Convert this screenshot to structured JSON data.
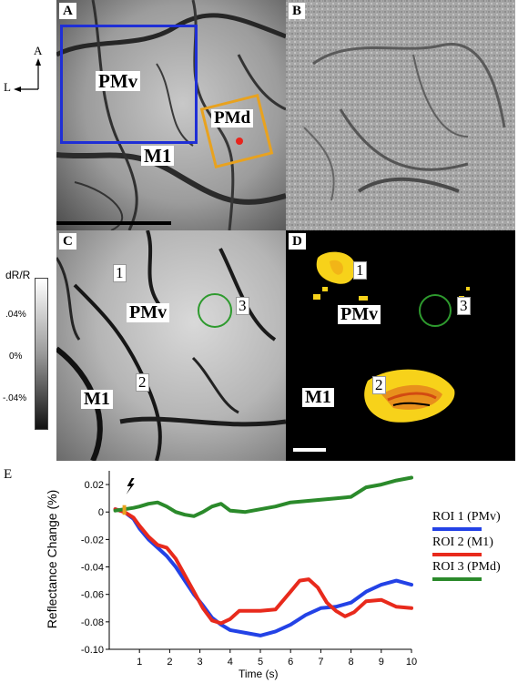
{
  "figure": {
    "orientation": {
      "anterior": "A",
      "lateral": "L"
    },
    "panels": {
      "a": {
        "label": "A",
        "regions": {
          "pmv": "PMv",
          "pmd": "PMd",
          "m1": "M1"
        }
      },
      "b": {
        "label": "B"
      },
      "c": {
        "label": "C",
        "regions": {
          "pmv": "PMv",
          "m1": "M1"
        },
        "rois": [
          "1",
          "2",
          "3"
        ]
      },
      "d": {
        "label": "D",
        "regions": {
          "pmv": "PMv",
          "m1": "M1"
        },
        "rois": [
          "1",
          "2",
          "3"
        ]
      },
      "e": {
        "label": "E"
      }
    },
    "colorbar": {
      "title": "dR/R",
      "ticks": [
        ".04%",
        "0%",
        "-.04%"
      ]
    },
    "colors": {
      "box_pmv": "#1f2fd6",
      "box_pmd": "#e8a21f",
      "roi_circle": "#2e9a2e",
      "stim_marker": "#e8a21f",
      "activation": "#f7d21a"
    }
  },
  "chart_data": {
    "type": "line",
    "title": "",
    "xlabel": "Time (s)",
    "ylabel": "Reflectance Change (%)",
    "xlim": [
      0,
      10
    ],
    "ylim": [
      -0.1,
      0.03
    ],
    "xticks": [
      "1",
      "2",
      "3",
      "4",
      "5",
      "6",
      "7",
      "8",
      "9",
      "10"
    ],
    "yticks": [
      "0.02",
      "0",
      "-0.02",
      "-0.04",
      "-0.06",
      "-0.08",
      "-0.10"
    ],
    "stimulus_time": 0.5,
    "grid": false,
    "legend_placement": "right",
    "series": [
      {
        "name": "ROI 1 (PMv)",
        "color": "#2342e6",
        "x": [
          0.2,
          0.5,
          0.8,
          1.0,
          1.3,
          1.6,
          1.9,
          2.2,
          2.5,
          2.8,
          3.1,
          3.4,
          3.7,
          4.0,
          4.5,
          5.0,
          5.5,
          6.0,
          6.5,
          7.0,
          7.5,
          8.0,
          8.5,
          9.0,
          9.5,
          10.0
        ],
        "values": [
          0.002,
          0.0,
          -0.005,
          -0.012,
          -0.02,
          -0.026,
          -0.032,
          -0.04,
          -0.05,
          -0.06,
          -0.068,
          -0.077,
          -0.082,
          -0.086,
          -0.088,
          -0.09,
          -0.087,
          -0.082,
          -0.075,
          -0.07,
          -0.069,
          -0.066,
          -0.058,
          -0.053,
          -0.05,
          -0.053
        ]
      },
      {
        "name": "ROI 2 (M1)",
        "color": "#e82a1c",
        "x": [
          0.2,
          0.5,
          0.8,
          1.0,
          1.3,
          1.6,
          1.9,
          2.2,
          2.5,
          2.8,
          3.1,
          3.4,
          3.7,
          4.0,
          4.3,
          4.6,
          5.0,
          5.5,
          6.0,
          6.3,
          6.6,
          6.9,
          7.2,
          7.5,
          7.8,
          8.1,
          8.5,
          9.0,
          9.5,
          10.0
        ],
        "values": [
          0.002,
          0.0,
          -0.004,
          -0.01,
          -0.018,
          -0.024,
          -0.026,
          -0.034,
          -0.046,
          -0.058,
          -0.07,
          -0.079,
          -0.081,
          -0.078,
          -0.072,
          -0.072,
          -0.072,
          -0.071,
          -0.058,
          -0.05,
          -0.049,
          -0.055,
          -0.066,
          -0.072,
          -0.076,
          -0.073,
          -0.065,
          -0.064,
          -0.069,
          -0.07
        ]
      },
      {
        "name": "ROI 3 (PMd)",
        "color": "#2b8a2b",
        "x": [
          0.2,
          0.5,
          0.8,
          1.0,
          1.3,
          1.6,
          1.9,
          2.2,
          2.5,
          2.8,
          3.1,
          3.4,
          3.7,
          4.0,
          4.5,
          5.0,
          5.5,
          6.0,
          6.5,
          7.0,
          7.5,
          8.0,
          8.5,
          9.0,
          9.5,
          10.0
        ],
        "values": [
          0.001,
          0.002,
          0.003,
          0.004,
          0.006,
          0.007,
          0.004,
          0.0,
          -0.002,
          -0.003,
          0.0,
          0.004,
          0.006,
          0.001,
          0.0,
          0.002,
          0.004,
          0.007,
          0.008,
          0.009,
          0.01,
          0.011,
          0.018,
          0.02,
          0.023,
          0.025
        ]
      }
    ]
  }
}
